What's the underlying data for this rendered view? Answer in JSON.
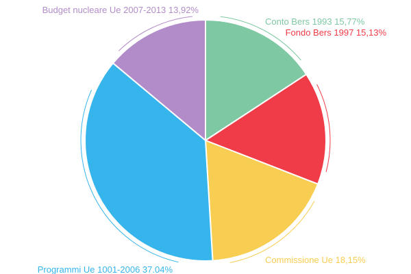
{
  "chart_data": {
    "type": "pie",
    "title": "",
    "slices": [
      {
        "label": "Conto Bers 1993 15,77%",
        "value": 15.77,
        "color": "#7ec8a3"
      },
      {
        "label": "Fondo Bers 1997 15,13%",
        "value": 15.13,
        "color": "#f03c48"
      },
      {
        "label": "Commissione Ue 18,15%",
        "value": 18.15,
        "color": "#f7cd52"
      },
      {
        "label": "Programmi Ue 1001-2006 37.04%",
        "value": 37.04,
        "color": "#36b5ec"
      },
      {
        "label": "Budget nucleare Ue 2007-2013 13,92%",
        "value": 13.92,
        "color": "#b28cc9"
      }
    ]
  }
}
